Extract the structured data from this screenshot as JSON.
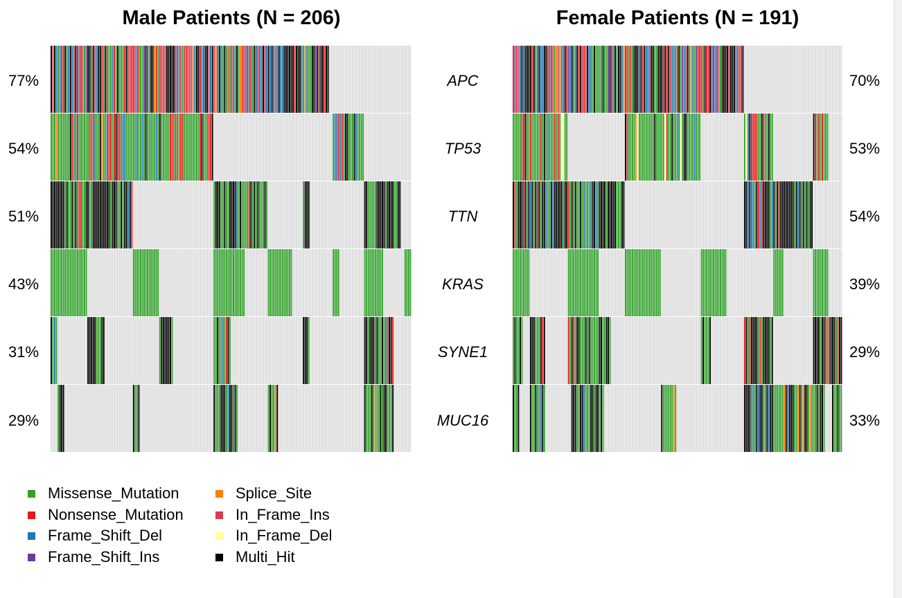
{
  "panels": [
    {
      "title": "Male Patients (N = 206)",
      "percents": [
        "77%",
        "54%",
        "51%",
        "43%",
        "31%",
        "29%"
      ]
    },
    {
      "title": "Female Patients (N = 191)",
      "percents": [
        "70%",
        "53%",
        "54%",
        "39%",
        "29%",
        "33%"
      ]
    }
  ],
  "genes": [
    "APC",
    "TP53",
    "TTN",
    "KRAS",
    "SYNE1",
    "MUC16"
  ],
  "legend": [
    {
      "label": "Missense_Mutation",
      "color": "#33a02c"
    },
    {
      "label": "Nonsense_Mutation",
      "color": "#e31a1c"
    },
    {
      "label": "Frame_Shift_Del",
      "color": "#1f78b4"
    },
    {
      "label": "Frame_Shift_Ins",
      "color": "#6a3d9a"
    },
    {
      "label": "Splice_Site",
      "color": "#ff7f00"
    },
    {
      "label": "In_Frame_Ins",
      "color": "#d53e4f"
    },
    {
      "label": "In_Frame_Del",
      "color": "#ffff99"
    },
    {
      "label": "Multi_Hit",
      "color": "#000000"
    }
  ],
  "chart_data": [
    {
      "type": "heatmap",
      "title": "Male Patients (N = 206)",
      "samples": 206,
      "genes": [
        "APC",
        "TP53",
        "TTN",
        "KRAS",
        "SYNE1",
        "MUC16"
      ],
      "altered_fraction": [
        0.77,
        0.54,
        0.51,
        0.43,
        0.31,
        0.29
      ],
      "altered_segments": [
        [
          [
            0,
            0.77
          ]
        ],
        [
          [
            0,
            0.45
          ],
          [
            0.78,
            0.87
          ]
        ],
        [
          [
            0,
            0.23
          ],
          [
            0.45,
            0.6
          ],
          [
            0.7,
            0.72
          ],
          [
            0.87,
            0.97
          ]
        ],
        [
          [
            0,
            0.1
          ],
          [
            0.23,
            0.3
          ],
          [
            0.45,
            0.54
          ],
          [
            0.6,
            0.67
          ],
          [
            0.78,
            0.8
          ],
          [
            0.87,
            0.92
          ],
          [
            0.98,
            1.0
          ]
        ],
        [
          [
            0,
            0.02
          ],
          [
            0.1,
            0.15
          ],
          [
            0.3,
            0.34
          ],
          [
            0.45,
            0.5
          ],
          [
            0.7,
            0.72
          ],
          [
            0.87,
            0.95
          ]
        ],
        [
          [
            0.02,
            0.04
          ],
          [
            0.23,
            0.25
          ],
          [
            0.45,
            0.52
          ],
          [
            0.6,
            0.63
          ],
          [
            0.87,
            0.95
          ]
        ]
      ],
      "palette_mix": [
        {
          "Multi_Hit": 0.3,
          "Missense_Mutation": 0.18,
          "Nonsense_Mutation": 0.16,
          "Frame_Shift_Del": 0.14,
          "Frame_Shift_Ins": 0.08,
          "In_Frame_Ins": 0.1,
          "Splice_Site": 0.04
        },
        {
          "Missense_Mutation": 0.7,
          "Nonsense_Mutation": 0.12,
          "Frame_Shift_Del": 0.08,
          "Multi_Hit": 0.06,
          "Splice_Site": 0.04
        },
        {
          "Multi_Hit": 0.6,
          "Missense_Mutation": 0.28,
          "Frame_Shift_Del": 0.06,
          "Nonsense_Mutation": 0.06
        },
        {
          "Missense_Mutation": 1.0
        },
        {
          "Multi_Hit": 0.5,
          "Missense_Mutation": 0.4,
          "Frame_Shift_Del": 0.05,
          "Nonsense_Mutation": 0.05
        },
        {
          "Missense_Mutation": 0.5,
          "Multi_Hit": 0.4,
          "Frame_Shift_Del": 0.05,
          "Splice_Site": 0.05
        }
      ]
    },
    {
      "type": "heatmap",
      "title": "Female Patients (N = 191)",
      "samples": 191,
      "genes": [
        "APC",
        "TP53",
        "TTN",
        "KRAS",
        "SYNE1",
        "MUC16"
      ],
      "altered_fraction": [
        0.7,
        0.53,
        0.54,
        0.39,
        0.29,
        0.33
      ],
      "altered_segments": [
        [
          [
            0,
            0.7
          ]
        ],
        [
          [
            0,
            0.17
          ],
          [
            0.34,
            0.57
          ],
          [
            0.7,
            0.79
          ],
          [
            0.91,
            0.96
          ]
        ],
        [
          [
            0,
            0.34
          ],
          [
            0.7,
            0.91
          ]
        ],
        [
          [
            0,
            0.05
          ],
          [
            0.17,
            0.26
          ],
          [
            0.34,
            0.45
          ],
          [
            0.57,
            0.65
          ],
          [
            0.79,
            0.82
          ],
          [
            0.91,
            0.96
          ]
        ],
        [
          [
            0,
            0.03
          ],
          [
            0.05,
            0.1
          ],
          [
            0.17,
            0.3
          ],
          [
            0.57,
            0.6
          ],
          [
            0.7,
            0.79
          ],
          [
            0.91,
            1.0
          ]
        ],
        [
          [
            0,
            0.02
          ],
          [
            0.05,
            0.1
          ],
          [
            0.18,
            0.28
          ],
          [
            0.45,
            0.5
          ],
          [
            0.7,
            0.95
          ],
          [
            0.97,
            1.0
          ]
        ]
      ],
      "palette_mix": [
        {
          "Multi_Hit": 0.28,
          "Missense_Mutation": 0.14,
          "Nonsense_Mutation": 0.16,
          "Frame_Shift_Del": 0.18,
          "Frame_Shift_Ins": 0.08,
          "In_Frame_Ins": 0.12,
          "Splice_Site": 0.04
        },
        {
          "Missense_Mutation": 0.62,
          "Nonsense_Mutation": 0.12,
          "Frame_Shift_Del": 0.1,
          "Multi_Hit": 0.06,
          "In_Frame_Del": 0.06,
          "Splice_Site": 0.04
        },
        {
          "Multi_Hit": 0.55,
          "Missense_Mutation": 0.3,
          "Frame_Shift_Del": 0.1,
          "Nonsense_Mutation": 0.05
        },
        {
          "Missense_Mutation": 1.0
        },
        {
          "Multi_Hit": 0.5,
          "Missense_Mutation": 0.4,
          "Nonsense_Mutation": 0.1
        },
        {
          "Missense_Mutation": 0.45,
          "Multi_Hit": 0.45,
          "Frame_Shift_Del": 0.05,
          "Splice_Site": 0.05
        }
      ]
    }
  ]
}
